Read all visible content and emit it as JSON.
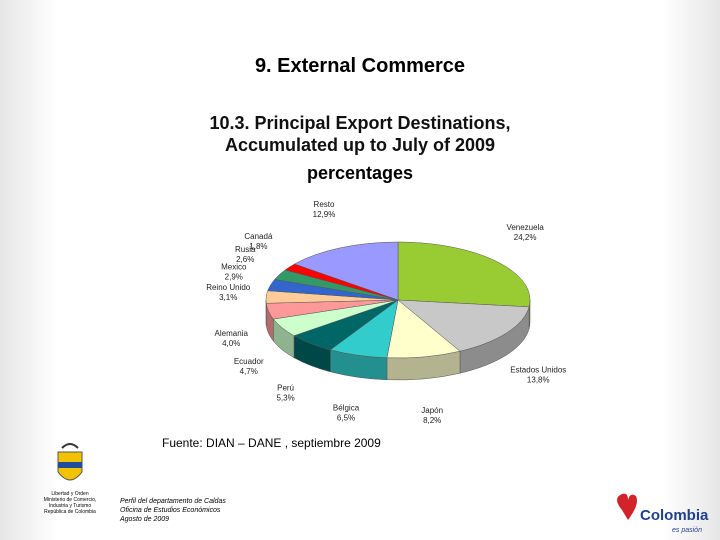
{
  "header": {
    "title": "9. External Commerce"
  },
  "chart_data": {
    "type": "pie",
    "title": "10.3. Principal Export Destinations, Accumulated up to July of 2009",
    "subtitle": "percentages",
    "categories": [
      "Venezuela",
      "Estados Unidos",
      "Japón",
      "Bélgica",
      "Perú",
      "Ecuador",
      "Alemania",
      "Reino Unido",
      "Mexico",
      "Rusia",
      "Canadá",
      "Resto"
    ],
    "values": [
      24.2,
      13.8,
      8.2,
      6.5,
      5.3,
      4.7,
      4.0,
      3.1,
      2.9,
      2.6,
      1.8,
      12.9
    ],
    "value_labels": [
      "24,2%",
      "13,8%",
      "8,2%",
      "6,5%",
      "5,3%",
      "4,7%",
      "4,0%",
      "3,1%",
      "2,9%",
      "2,6%",
      "1,8%",
      "12,9%"
    ],
    "colors": [
      "#99cc33",
      "#c8c8c8",
      "#ffffcc",
      "#33cccc",
      "#006666",
      "#ccffcc",
      "#ff9999",
      "#ffcc99",
      "#3366cc",
      "#339966",
      "#ff0000",
      "#9999ff"
    ],
    "source": "Fuente: DIAN – DANE , septiembre 2009"
  },
  "footer": {
    "lines": [
      "Perfil del departamento de Caldas",
      "Oficina de Estudios Económicos",
      "Agosto de 2009"
    ],
    "ministry": [
      "Libertad y Orden",
      "Ministerio de Comercio,",
      "Industria y Turismo",
      "República de Colombia"
    ],
    "brand": "Colombia",
    "tagline": "es pasión"
  }
}
